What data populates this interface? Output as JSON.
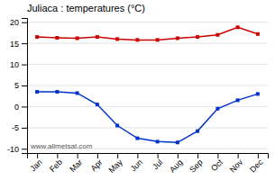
{
  "chart_data": {
    "type": "line",
    "title": "Juliaca : temperatures (°C)",
    "categories": [
      "Jan",
      "Feb",
      "Mar",
      "Apr",
      "May",
      "Jun",
      "Jul",
      "Aug",
      "Sep",
      "Oct",
      "Nov",
      "Dec"
    ],
    "series": [
      {
        "color": "#cc0000",
        "marker": "square",
        "values": [
          16.5,
          16.3,
          16.2,
          16.5,
          16.0,
          15.8,
          15.8,
          16.2,
          16.5,
          17.0,
          18.8,
          17.2
        ]
      },
      {
        "color": "#0033cc",
        "marker": "square",
        "values": [
          3.5,
          3.5,
          3.2,
          0.5,
          -4.5,
          -7.5,
          -8.3,
          -8.5,
          -5.8,
          -0.5,
          1.5,
          3.0
        ]
      }
    ],
    "ylim": [
      -11,
      21
    ],
    "yticks": [
      -10,
      -5,
      0,
      5,
      10,
      15,
      20
    ],
    "grid": true,
    "annotation": "www.allmetsat.com"
  }
}
